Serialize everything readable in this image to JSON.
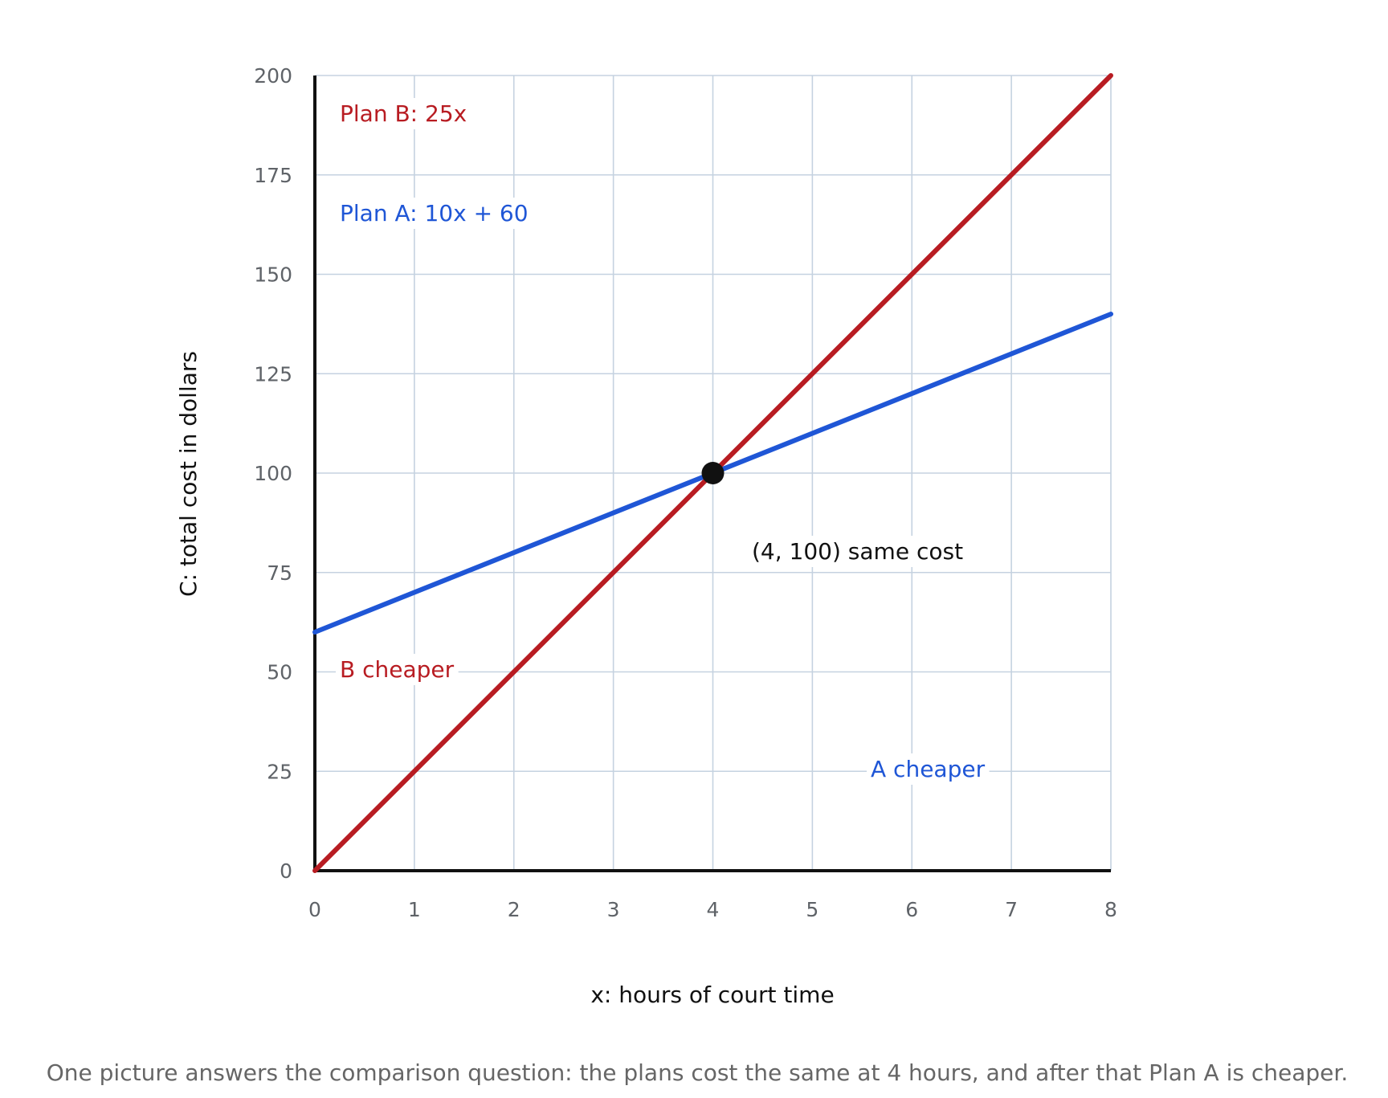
{
  "chart_data": {
    "type": "line",
    "xlabel": "x: hours of court time",
    "ylabel": "C: total cost in dollars",
    "xlim": [
      0,
      8
    ],
    "ylim": [
      0,
      200
    ],
    "x_ticks": [
      "0",
      "1",
      "2",
      "3",
      "4",
      "5",
      "6",
      "7",
      "8"
    ],
    "y_ticks": [
      "0",
      "25",
      "50",
      "75",
      "100",
      "125",
      "150",
      "175",
      "200"
    ],
    "grid": true,
    "series": [
      {
        "name": "Plan A: 10x + 60",
        "color": "#1f56d6",
        "x": [
          0,
          8
        ],
        "y": [
          60,
          140
        ]
      },
      {
        "name": "Plan B: 25x",
        "color": "#b81c22",
        "x": [
          0,
          8
        ],
        "y": [
          0,
          200
        ]
      }
    ],
    "intersection": {
      "x": 4,
      "y": 100,
      "label": "(4, 100) same cost",
      "color": "#111111"
    },
    "annotations": [
      {
        "text": "B cheaper",
        "color": "#b81c22"
      },
      {
        "text": "A cheaper",
        "color": "#1f56d6"
      }
    ],
    "caption": "One picture answers the comparison question: the plans cost the same at 4 hours, and after that Plan A is cheaper."
  }
}
